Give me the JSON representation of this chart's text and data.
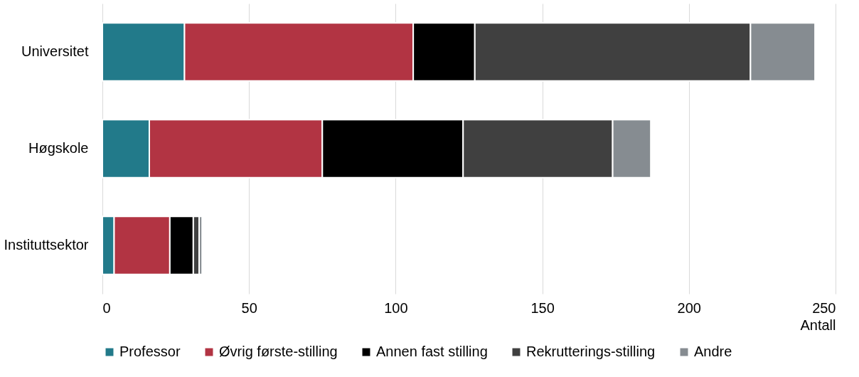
{
  "chart_data": {
    "type": "bar",
    "orientation": "horizontal",
    "stacked": true,
    "xlabel": "Antall",
    "categories": [
      "Universitet",
      "Høgskole",
      "Instituttsektor"
    ],
    "series": [
      {
        "name": "Professor",
        "color": "#227a8a",
        "values": [
          28,
          16,
          4
        ]
      },
      {
        "name": "Øvrig første-stilling",
        "color": "#b23443",
        "values": [
          78,
          59,
          19
        ]
      },
      {
        "name": "Annen fast stilling",
        "color": "#000000",
        "values": [
          21,
          48,
          8
        ]
      },
      {
        "name": "Rekrutterings-stilling",
        "color": "#404040",
        "values": [
          94,
          51,
          2
        ]
      },
      {
        "name": "Andre",
        "color": "#868c91",
        "values": [
          22,
          13,
          1
        ]
      }
    ],
    "xlim": [
      0,
      250
    ],
    "xticks": [
      0,
      50,
      100,
      150,
      200,
      250
    ],
    "grid": "x",
    "legend": "bottom"
  }
}
